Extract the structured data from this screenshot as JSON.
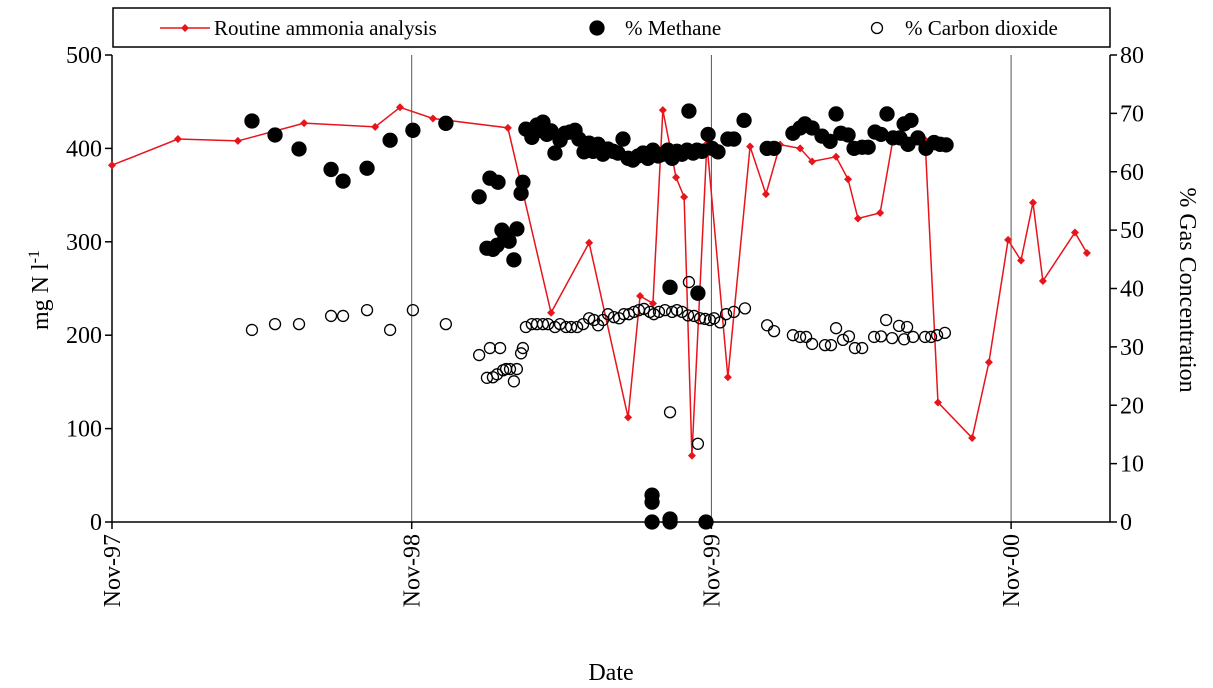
{
  "chart_data": {
    "type": "combo",
    "x_label": "Date",
    "y_label": "mg N l",
    "y_label_sup": "-1",
    "y2_label": "% Gas Concentration",
    "legend": "top",
    "xlim": [
      1997.833,
      2001.163
    ],
    "xticks": [
      {
        "value": 1997.833,
        "label": "Nov-97"
      },
      {
        "value": 1998.833,
        "label": "Nov-98"
      },
      {
        "value": 1999.833,
        "label": "Nov-99"
      },
      {
        "value": 2000.833,
        "label": "Nov-00"
      }
    ],
    "grid": true,
    "ylim": [
      0,
      500
    ],
    "yticks": [
      0,
      100,
      200,
      300,
      400,
      500
    ],
    "y2lim": [
      0,
      80
    ],
    "y2ticks": [
      0,
      10,
      20,
      30,
      40,
      50,
      60,
      70,
      80
    ],
    "series": [
      {
        "name": "Routine ammonia analysis",
        "type": "line",
        "color": "#e8141b",
        "axis": "y",
        "x": [
          1997.833,
          1998.053,
          1998.253,
          1998.474,
          1998.711,
          1998.794,
          1998.904,
          1999.154,
          1999.298,
          1999.425,
          1999.555,
          1999.595,
          1999.638,
          1999.671,
          1999.715,
          1999.742,
          1999.768,
          1999.818,
          1999.888,
          1999.962,
          2000.015,
          2000.062,
          2000.129,
          2000.169,
          2000.249,
          2000.289,
          2000.322,
          2000.396,
          2000.439,
          2000.546,
          2000.589,
          2000.703,
          2000.759,
          2000.823,
          2000.866,
          2000.906,
          2000.939,
          2001.046,
          2001.086
        ],
        "values": [
          382,
          410,
          408,
          427,
          423,
          444,
          432,
          422,
          224,
          299,
          112,
          242,
          234,
          441,
          369,
          348,
          71,
          405,
          155,
          402,
          351,
          404,
          400,
          386,
          391,
          367,
          325,
          331,
          410,
          409,
          128,
          90,
          171,
          302,
          280,
          342,
          258,
          310,
          288
        ]
      },
      {
        "name": "% Methane",
        "type": "scatter",
        "color": "#000000",
        "fill": "filled",
        "axis": "y2",
        "x": [
          1998.3,
          1998.377,
          1998.457,
          1998.564,
          1998.604,
          1998.684,
          1998.761,
          1998.837,
          1998.947,
          1999.058,
          1999.084,
          1999.094,
          1999.104,
          1999.118,
          1999.121,
          1999.134,
          1999.144,
          1999.158,
          1999.174,
          1999.184,
          1999.198,
          1999.204,
          1999.214,
          1999.234,
          1999.251,
          1999.261,
          1999.271,
          1999.284,
          1999.298,
          1999.311,
          1999.328,
          1999.344,
          1999.361,
          1999.378,
          1999.391,
          1999.408,
          1999.425,
          1999.438,
          1999.455,
          1999.471,
          1999.488,
          1999.505,
          1999.521,
          1999.538,
          1999.555,
          1999.571,
          1999.588,
          1999.605,
          1999.621,
          1999.635,
          1999.635,
          1999.635,
          1999.638,
          1999.655,
          1999.671,
          1999.688,
          1999.695,
          1999.695,
          1999.695,
          1999.702,
          1999.718,
          1999.735,
          1999.752,
          1999.758,
          1999.772,
          1999.785,
          1999.788,
          1999.802,
          1999.815,
          1999.822,
          1999.835,
          1999.855,
          1999.888,
          1999.908,
          1999.942,
          2000.019,
          2000.042,
          2000.105,
          2000.129,
          2000.145,
          2000.169,
          2000.202,
          2000.229,
          2000.249,
          2000.265,
          2000.289,
          2000.309,
          2000.336,
          2000.356,
          2000.379,
          2000.399,
          2000.419,
          2000.439,
          2000.462,
          2000.476,
          2000.489,
          2000.499,
          2000.522,
          2000.549,
          2000.576,
          2000.596,
          2000.616
        ],
        "values": [
          68.7,
          66.3,
          63.9,
          60.4,
          58.4,
          60.6,
          65.4,
          67.1,
          68.3,
          55.7,
          46.9,
          58.9,
          46.7,
          47.4,
          58.2,
          50,
          49,
          48.1,
          44.9,
          50.2,
          56.3,
          58.2,
          67.3,
          65.9,
          68,
          67.1,
          68.5,
          66.4,
          67,
          63.2,
          65.4,
          66.6,
          66.8,
          67.1,
          65.6,
          63.4,
          64.9,
          63.5,
          64.7,
          63,
          63.9,
          63.5,
          63.2,
          65.6,
          62.3,
          62,
          62.7,
          63.2,
          62.3,
          4.6,
          3.4,
          0,
          63.7,
          62.7,
          63,
          63.7,
          40.2,
          0.5,
          0,
          62.3,
          63.5,
          63,
          63.7,
          70.4,
          63.2,
          63.7,
          39.2,
          63.5,
          0,
          66.4,
          64,
          63.4,
          65.6,
          65.6,
          68.8,
          64,
          64,
          66.6,
          67.5,
          68.2,
          67.5,
          66.1,
          65.2,
          69.9,
          66.6,
          66.3,
          64,
          64.2,
          64.2,
          66.8,
          66.4,
          69.9,
          65.8,
          65.8,
          68.2,
          64.7,
          68.8,
          65.8,
          64,
          65,
          64.7,
          64.6
        ]
      },
      {
        "name": "% Carbon dioxide",
        "type": "scatter",
        "color": "#000000",
        "fill": "open",
        "axis": "y2",
        "x": [
          1998.3,
          1998.377,
          1998.457,
          1998.564,
          1998.604,
          1998.684,
          1998.761,
          1998.837,
          1998.947,
          1999.058,
          1999.084,
          1999.094,
          1999.104,
          1999.118,
          1999.128,
          1999.138,
          1999.148,
          1999.161,
          1999.174,
          1999.184,
          1999.198,
          1999.204,
          1999.214,
          1999.234,
          1999.251,
          1999.271,
          1999.288,
          1999.311,
          1999.328,
          1999.348,
          1999.365,
          1999.385,
          1999.405,
          1999.425,
          1999.441,
          1999.455,
          1999.471,
          1999.488,
          1999.508,
          1999.525,
          1999.541,
          1999.558,
          1999.575,
          1999.591,
          1999.608,
          1999.628,
          1999.641,
          1999.658,
          1999.678,
          1999.695,
          1999.702,
          1999.718,
          1999.735,
          1999.755,
          1999.758,
          1999.775,
          1999.788,
          1999.795,
          1999.812,
          1999.828,
          1999.842,
          1999.862,
          1999.882,
          1999.908,
          1999.945,
          2000.019,
          2000.042,
          2000.105,
          2000.129,
          2000.149,
          2000.169,
          2000.212,
          2000.232,
          2000.249,
          2000.272,
          2000.292,
          2000.312,
          2000.336,
          2000.376,
          2000.399,
          2000.416,
          2000.436,
          2000.459,
          2000.476,
          2000.486,
          2000.506,
          2000.546,
          2000.566,
          2000.586,
          2000.612
        ],
        "values": [
          32.9,
          33.9,
          33.9,
          35.3,
          35.3,
          36.3,
          32.9,
          36.3,
          33.9,
          28.6,
          24.7,
          29.8,
          24.8,
          25.3,
          29.8,
          26,
          26.2,
          26.2,
          24.1,
          26.2,
          28.9,
          29.8,
          33.4,
          33.9,
          33.9,
          33.9,
          33.9,
          33.4,
          33.9,
          33.4,
          33.4,
          33.4,
          33.9,
          34.9,
          34.6,
          33.7,
          34.6,
          35.6,
          35.1,
          34.9,
          35.6,
          35.6,
          36,
          36.3,
          36.5,
          36,
          35.6,
          36,
          36.3,
          18.8,
          36,
          36.3,
          36,
          35.4,
          41.1,
          35.3,
          13.4,
          34.9,
          34.8,
          34.6,
          34.9,
          34.2,
          35.6,
          36,
          36.6,
          33.7,
          32.7,
          32,
          31.7,
          31.7,
          30.5,
          30.3,
          30.3,
          33.2,
          31.2,
          31.8,
          29.8,
          29.8,
          31.7,
          31.8,
          34.6,
          31.5,
          33.6,
          31.3,
          33.4,
          31.7,
          31.7,
          31.7,
          32,
          32.4
        ]
      }
    ]
  }
}
